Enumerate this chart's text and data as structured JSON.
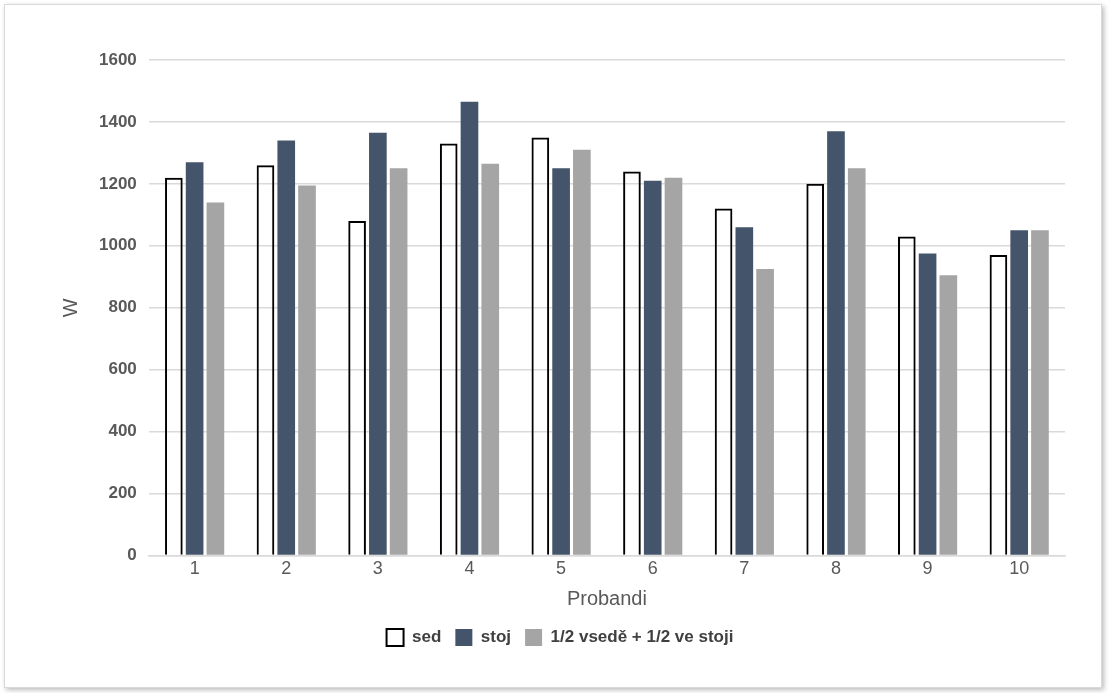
{
  "chart_data": {
    "type": "bar",
    "xlabel": "Probandi",
    "ylabel": "W",
    "categories": [
      "1",
      "2",
      "3",
      "4",
      "5",
      "6",
      "7",
      "8",
      "9",
      "10"
    ],
    "series": [
      {
        "name": "sed",
        "color": "#000000",
        "values": [
          1220,
          1260,
          1080,
          1330,
          1350,
          1240,
          1120,
          1200,
          1030,
          970
        ]
      },
      {
        "name": "stoj",
        "color": "#44546a",
        "values": [
          1270,
          1340,
          1365,
          1465,
          1250,
          1210,
          1060,
          1370,
          975,
          1050
        ]
      },
      {
        "name": "1/2 vsedě + 1/2 ve stoji",
        "color": "#a5a5a5",
        "values": [
          1140,
          1195,
          1250,
          1265,
          1310,
          1220,
          925,
          1250,
          905,
          1050
        ]
      }
    ],
    "ylim": [
      0,
      1600
    ],
    "yticks": [
      0,
      200,
      400,
      600,
      800,
      1000,
      1200,
      1400,
      1600
    ],
    "grid": "y",
    "legend": "bottom"
  }
}
